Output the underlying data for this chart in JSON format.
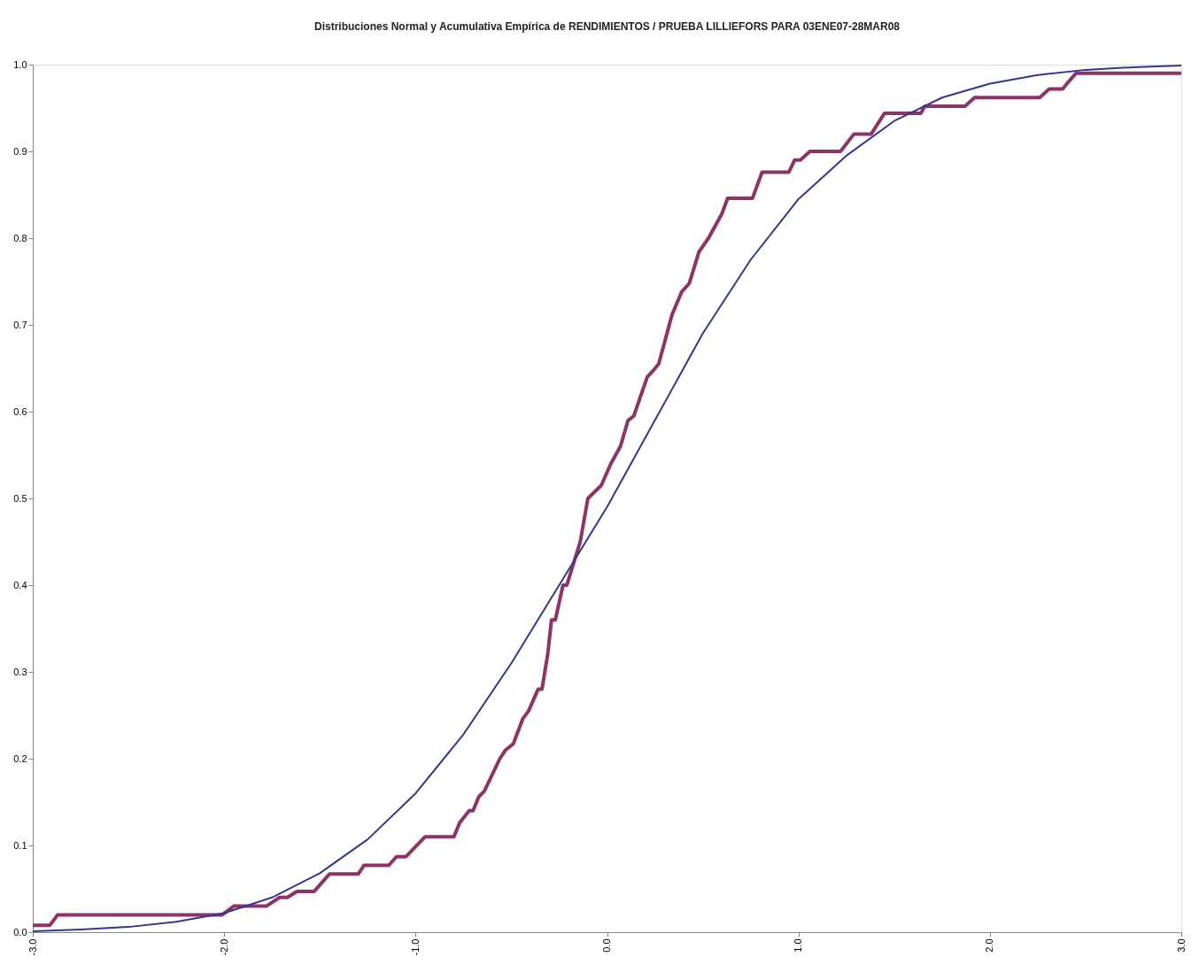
{
  "chart_data": {
    "type": "line",
    "title": "Distribuciones Normal y Acumulativa Empírica de RENDIMIENTOS  / PRUEBA LILLIEFORS PARA 03ENE07-28MAR08",
    "xlim": [
      -3,
      3
    ],
    "ylim": [
      0,
      1
    ],
    "xticks": [
      {
        "value": -3,
        "label": "-3.0"
      },
      {
        "value": -2,
        "label": "-2.0"
      },
      {
        "value": -1,
        "label": "-1.0"
      },
      {
        "value": 0,
        "label": "0.0"
      },
      {
        "value": 1,
        "label": "1.0"
      },
      {
        "value": 2,
        "label": "2.0"
      },
      {
        "value": 3,
        "label": "3.0"
      }
    ],
    "yticks": [
      {
        "value": 0,
        "label": "0.0"
      },
      0.1,
      0.2,
      0.3,
      0.4,
      0.5,
      0.6,
      0.7,
      0.8,
      0.9,
      {
        "value": 1,
        "label": "1.0"
      }
    ],
    "grid": false,
    "marker": "none",
    "line_style": "solid",
    "series": [
      {
        "color": "#8b3465",
        "x": [
          -3,
          -2.91,
          -2.87,
          -2.01,
          -1.95,
          -1.78,
          -1.71,
          -1.67,
          -1.62,
          -1.53,
          -1.45,
          -1.3,
          -1.27,
          -1.14,
          -1.1,
          -1.05,
          -0.95,
          -0.8,
          -0.77,
          -0.72,
          -0.7,
          -0.67,
          -0.64,
          -0.61,
          -0.56,
          -0.53,
          -0.49,
          -0.44,
          -0.41,
          -0.36,
          -0.34,
          -0.31,
          -0.29,
          -0.27,
          -0.23,
          -0.21,
          -0.14,
          -0.1,
          -0.03,
          0.02,
          0.07,
          0.11,
          0.14,
          0.21,
          0.24,
          0.27,
          0.34,
          0.39,
          0.43,
          0.48,
          0.53,
          0.6,
          0.63,
          0.76,
          0.81,
          0.95,
          0.98,
          1.01,
          1.06,
          1.22,
          1.29,
          1.38,
          1.45,
          1.64,
          1.66,
          1.87,
          1.92,
          2.26,
          2.31,
          2.38,
          2.41,
          2.45,
          3
        ],
        "values": [
          0.008,
          0.008,
          0.02,
          0.02,
          0.03,
          0.03,
          0.04,
          0.04,
          0.047,
          0.047,
          0.067,
          0.067,
          0.077,
          0.077,
          0.087,
          0.087,
          0.11,
          0.11,
          0.126,
          0.14,
          0.14,
          0.156,
          0.163,
          0.177,
          0.2,
          0.21,
          0.217,
          0.246,
          0.255,
          0.28,
          0.28,
          0.32,
          0.36,
          0.36,
          0.4,
          0.4,
          0.45,
          0.5,
          0.515,
          0.54,
          0.56,
          0.59,
          0.595,
          0.64,
          0.647,
          0.655,
          0.712,
          0.738,
          0.748,
          0.784,
          0.8,
          0.828,
          0.846,
          0.846,
          0.876,
          0.876,
          0.89,
          0.89,
          0.9,
          0.9,
          0.92,
          0.92,
          0.944,
          0.944,
          0.952,
          0.952,
          0.962,
          0.962,
          0.972,
          0.972,
          0.98,
          0.99,
          0.99
        ]
      },
      {
        "color": "#33378f",
        "x": [
          -3,
          -2.75,
          -2.5,
          -2.25,
          -2,
          -1.75,
          -1.5,
          -1.25,
          -1,
          -0.75,
          -0.5,
          -0.25,
          0,
          0.25,
          0.5,
          0.75,
          1,
          1.25,
          1.5,
          1.75,
          2,
          2.25,
          2.5,
          2.75,
          3
        ],
        "values": [
          0.001,
          0.003,
          0.006,
          0.012,
          0.022,
          0.04,
          0.068,
          0.107,
          0.16,
          0.228,
          0.31,
          0.4,
          0.49,
          0.59,
          0.69,
          0.775,
          0.845,
          0.895,
          0.935,
          0.962,
          0.978,
          0.988,
          0.994,
          0.997,
          0.999
        ]
      }
    ]
  }
}
